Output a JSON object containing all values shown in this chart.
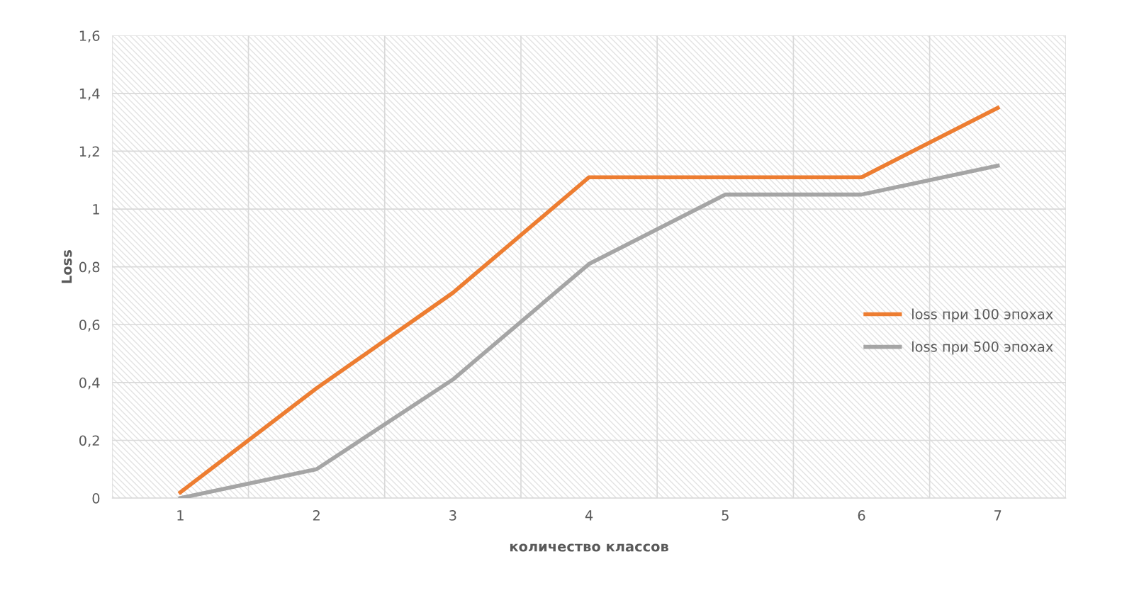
{
  "chart_data": {
    "type": "line",
    "xlabel": "количество классов",
    "ylabel": "Loss",
    "categories": [
      "1",
      "2",
      "3",
      "4",
      "5",
      "6",
      "7"
    ],
    "series": [
      {
        "name": "loss при 100 эпохах",
        "color": "#ed7d31",
        "values": [
          0.02,
          0.38,
          0.71,
          1.11,
          1.11,
          1.11,
          1.35
        ]
      },
      {
        "name": "loss при 500 эпохах",
        "color": "#a5a5a5",
        "values": [
          0,
          0.1,
          0.41,
          0.81,
          1.05,
          1.05,
          1.15
        ]
      }
    ],
    "ylim": [
      0,
      1.6
    ],
    "yticks": [
      {
        "value": 0,
        "label": "0"
      },
      {
        "value": 0.2,
        "label": "0,2"
      },
      {
        "value": 0.4,
        "label": "0,4"
      },
      {
        "value": 0.6,
        "label": "0,6"
      },
      {
        "value": 0.8,
        "label": "0,8"
      },
      {
        "value": 1,
        "label": "1"
      },
      {
        "value": 1.2,
        "label": "1,2"
      },
      {
        "value": 1.4,
        "label": "1,4"
      },
      {
        "value": 1.6,
        "label": "1,6"
      }
    ],
    "grid": true,
    "legend": "right",
    "marker": "none",
    "line_style": "solid"
  }
}
